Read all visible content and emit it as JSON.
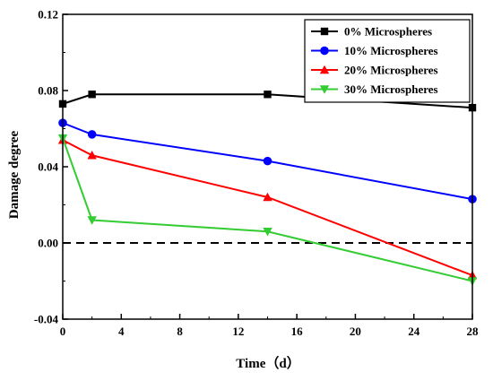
{
  "chart_data": {
    "type": "line",
    "title": "",
    "xlabel": "Time（d）",
    "ylabel": "Damage degree",
    "xlim": [
      0,
      28
    ],
    "ylim": [
      -0.04,
      0.12
    ],
    "x_ticks": [
      0,
      4,
      8,
      12,
      16,
      20,
      24,
      28
    ],
    "y_ticks": [
      -0.04,
      0.0,
      0.04,
      0.08,
      0.12
    ],
    "y_tick_labels": [
      "-0.04",
      "0.00",
      "0.04",
      "0.08",
      "0.12"
    ],
    "grid": false,
    "legend_position": "top-right",
    "reference_line": {
      "y": 0.0,
      "style": "dashed",
      "color": "#000000"
    },
    "x": [
      0,
      2,
      14,
      28
    ],
    "series": [
      {
        "name": "0% Microspheres",
        "marker": "square",
        "color": "#000000",
        "values": [
          0.073,
          0.078,
          0.078,
          0.071
        ]
      },
      {
        "name": "10% Microspheres",
        "marker": "circle",
        "color": "#0000ff",
        "values": [
          0.063,
          0.057,
          0.043,
          0.023
        ]
      },
      {
        "name": "20% Microspheres",
        "marker": "triangle-up",
        "color": "#ff0000",
        "values": [
          0.054,
          0.046,
          0.024,
          -0.017
        ]
      },
      {
        "name": "30% Microspheres",
        "marker": "triangle-down",
        "color": "#33cc33",
        "values": [
          0.055,
          0.012,
          0.006,
          -0.02
        ]
      }
    ]
  }
}
